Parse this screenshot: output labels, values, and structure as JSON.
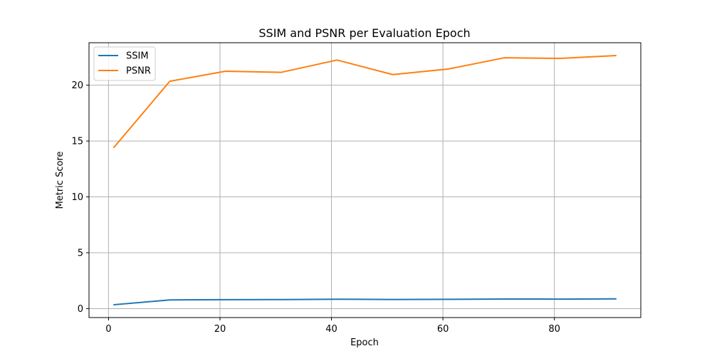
{
  "chart_data": {
    "type": "line",
    "title": "SSIM and PSNR per Evaluation Epoch",
    "xlabel": "Epoch",
    "ylabel": "Metric Score",
    "x": [
      1,
      11,
      21,
      31,
      41,
      51,
      61,
      71,
      81,
      91
    ],
    "series": [
      {
        "name": "SSIM",
        "color": "#1f77b4",
        "values": [
          0.35,
          0.78,
          0.8,
          0.81,
          0.84,
          0.82,
          0.83,
          0.86,
          0.85,
          0.87
        ]
      },
      {
        "name": "PSNR",
        "color": "#ff7f0e",
        "values": [
          14.45,
          20.35,
          21.25,
          21.15,
          22.25,
          20.95,
          21.45,
          22.45,
          22.4,
          22.65
        ]
      }
    ],
    "xlim": [
      -3.5,
      95.5
    ],
    "ylim": [
      -0.8,
      23.8
    ],
    "xticks": [
      0,
      20,
      40,
      60,
      80
    ],
    "yticks": [
      0,
      5,
      10,
      15,
      20
    ],
    "grid": true,
    "legend_position": "top-left"
  }
}
